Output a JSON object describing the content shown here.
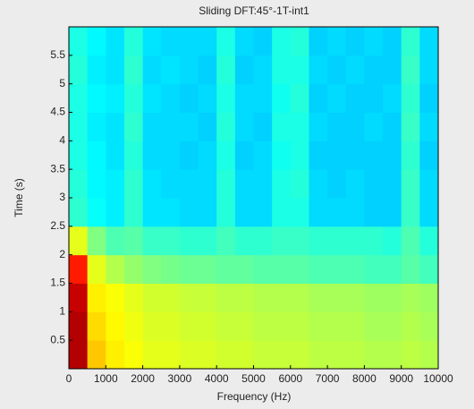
{
  "chart_data": {
    "type": "heatmap",
    "title": "Sliding DFT:45°-1T-int1",
    "xlabel": "Frequency (Hz)",
    "ylabel": "Time (s)",
    "xlim": [
      0,
      10000
    ],
    "xticks": [
      0,
      1000,
      2000,
      3000,
      4000,
      5000,
      6000,
      7000,
      8000,
      9000,
      10000
    ],
    "ylim": [
      0,
      6
    ],
    "yticks": [
      0.5,
      1,
      1.5,
      2,
      2.5,
      3,
      3.5,
      4,
      4.5,
      5,
      5.5
    ],
    "colormap": "jet",
    "zlim": [
      0,
      1
    ],
    "xbins": [
      0,
      500,
      1000,
      1500,
      2000,
      2500,
      3000,
      3500,
      4000,
      4500,
      5000,
      5500,
      6000,
      6500,
      7000,
      7500,
      8000,
      8500,
      9000,
      9500,
      10000
    ],
    "ybins": [
      0,
      0.5,
      1,
      1.5,
      2,
      2.5,
      3,
      3.5,
      4,
      4.5,
      5,
      5.5,
      6
    ],
    "z": [
      [
        0.95,
        0.68,
        0.64,
        0.62,
        0.6,
        0.6,
        0.59,
        0.59,
        0.58,
        0.58,
        0.57,
        0.57,
        0.57,
        0.56,
        0.56,
        0.56,
        0.55,
        0.55,
        0.56,
        0.55
      ],
      [
        0.95,
        0.66,
        0.63,
        0.61,
        0.59,
        0.59,
        0.58,
        0.58,
        0.57,
        0.57,
        0.56,
        0.56,
        0.56,
        0.55,
        0.55,
        0.55,
        0.54,
        0.54,
        0.55,
        0.54
      ],
      [
        0.93,
        0.64,
        0.62,
        0.6,
        0.58,
        0.58,
        0.57,
        0.57,
        0.56,
        0.56,
        0.55,
        0.55,
        0.55,
        0.54,
        0.54,
        0.54,
        0.53,
        0.53,
        0.54,
        0.53
      ],
      [
        0.85,
        0.6,
        0.55,
        0.52,
        0.5,
        0.49,
        0.48,
        0.48,
        0.47,
        0.47,
        0.46,
        0.46,
        0.46,
        0.45,
        0.45,
        0.45,
        0.44,
        0.44,
        0.46,
        0.44
      ],
      [
        0.6,
        0.5,
        0.45,
        0.46,
        0.43,
        0.43,
        0.42,
        0.42,
        0.44,
        0.42,
        0.42,
        0.43,
        0.43,
        0.42,
        0.42,
        0.42,
        0.42,
        0.41,
        0.45,
        0.41
      ],
      [
        0.42,
        0.38,
        0.36,
        0.42,
        0.35,
        0.35,
        0.34,
        0.34,
        0.41,
        0.34,
        0.34,
        0.4,
        0.4,
        0.34,
        0.34,
        0.34,
        0.33,
        0.33,
        0.43,
        0.34
      ],
      [
        0.41,
        0.37,
        0.36,
        0.42,
        0.35,
        0.34,
        0.34,
        0.34,
        0.41,
        0.34,
        0.34,
        0.4,
        0.41,
        0.34,
        0.33,
        0.34,
        0.33,
        0.33,
        0.43,
        0.34
      ],
      [
        0.4,
        0.37,
        0.35,
        0.41,
        0.34,
        0.34,
        0.33,
        0.34,
        0.4,
        0.33,
        0.34,
        0.39,
        0.4,
        0.33,
        0.33,
        0.33,
        0.33,
        0.33,
        0.42,
        0.33
      ],
      [
        0.4,
        0.36,
        0.35,
        0.42,
        0.34,
        0.34,
        0.34,
        0.33,
        0.41,
        0.34,
        0.33,
        0.4,
        0.4,
        0.34,
        0.33,
        0.33,
        0.34,
        0.33,
        0.43,
        0.34
      ],
      [
        0.4,
        0.37,
        0.36,
        0.41,
        0.35,
        0.34,
        0.33,
        0.34,
        0.4,
        0.34,
        0.34,
        0.39,
        0.41,
        0.33,
        0.34,
        0.33,
        0.33,
        0.34,
        0.42,
        0.33
      ],
      [
        0.41,
        0.36,
        0.35,
        0.42,
        0.34,
        0.35,
        0.34,
        0.33,
        0.41,
        0.33,
        0.34,
        0.4,
        0.4,
        0.34,
        0.33,
        0.34,
        0.33,
        0.33,
        0.43,
        0.34
      ],
      [
        0.4,
        0.37,
        0.35,
        0.41,
        0.35,
        0.34,
        0.34,
        0.34,
        0.4,
        0.34,
        0.33,
        0.4,
        0.41,
        0.33,
        0.34,
        0.33,
        0.34,
        0.33,
        0.42,
        0.34
      ]
    ]
  }
}
